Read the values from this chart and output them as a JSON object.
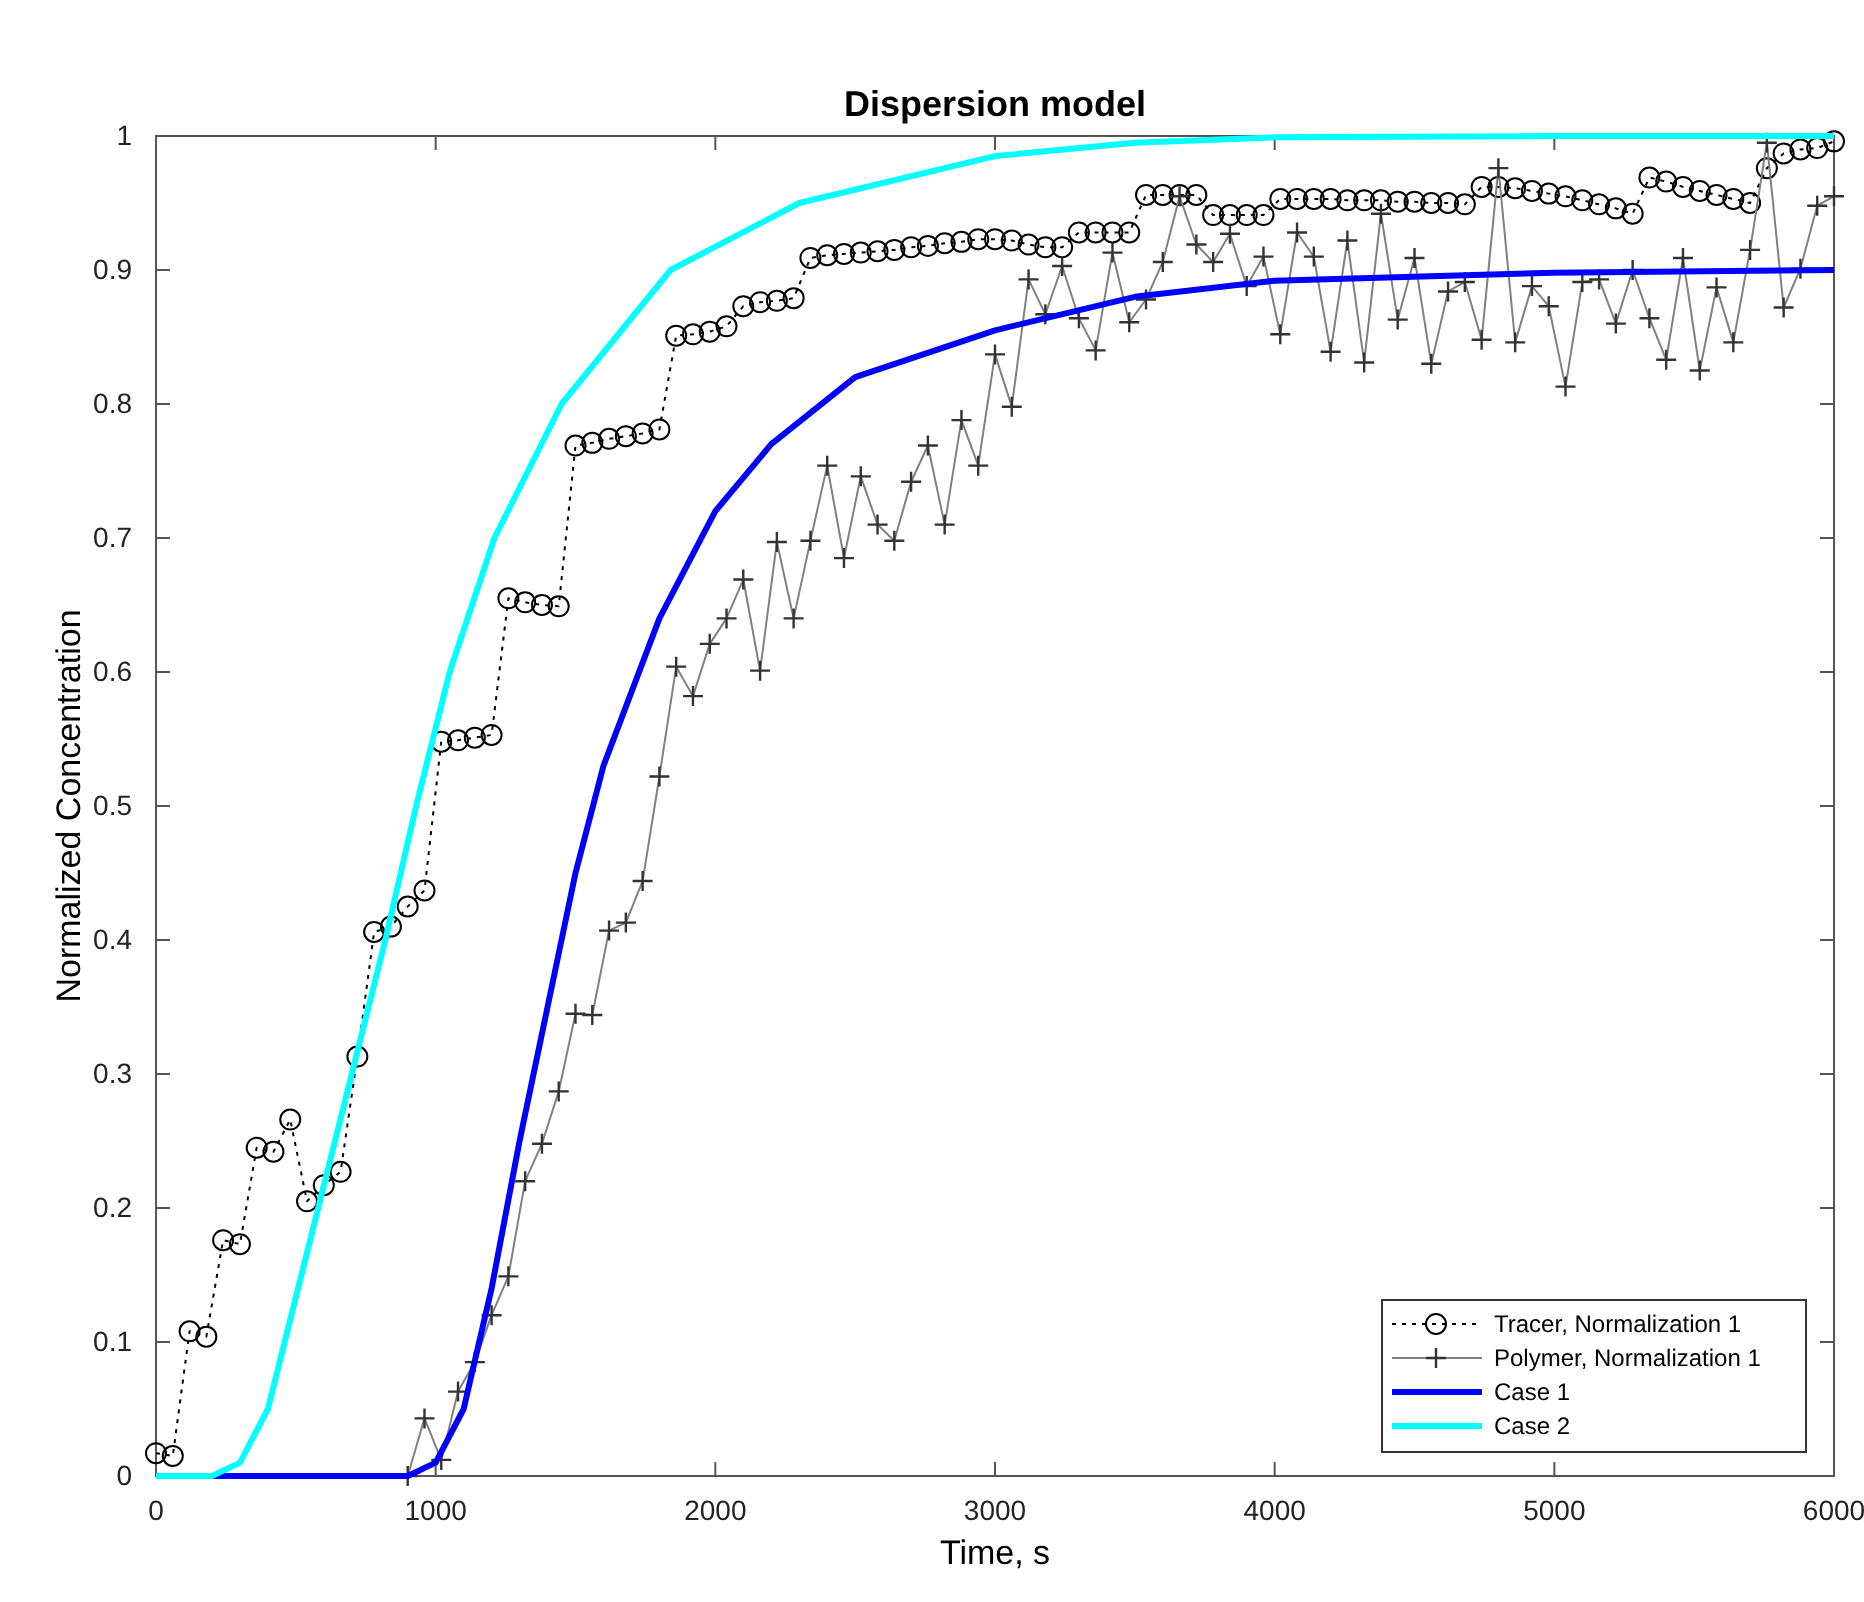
{
  "chart_data": {
    "type": "line",
    "title": "Dispersion model",
    "xlabel": "Time, s",
    "ylabel": "Normalized Concentration",
    "xlim": [
      0,
      6000
    ],
    "xticks": [
      0,
      1000,
      2000,
      3000,
      4000,
      5000,
      6000
    ],
    "ylim": [
      0,
      1
    ],
    "yticks": [
      0,
      0.1,
      0.2,
      0.3,
      0.4,
      0.5,
      0.6,
      0.7,
      0.8,
      0.9,
      1
    ],
    "grid": false,
    "legend": "bottom right",
    "series": [
      {
        "name": "Tracer, Normalization 1",
        "color": "#000000",
        "marker": "circle",
        "line_style": "dotted",
        "x": [
          0,
          60,
          120,
          180,
          240,
          300,
          360,
          420,
          480,
          540,
          600,
          660,
          720,
          780,
          840,
          900,
          960,
          1020,
          1080,
          1140,
          1200,
          1260,
          1320,
          1380,
          1440,
          1500,
          1560,
          1620,
          1680,
          1740,
          1800,
          1860,
          1920,
          1980,
          2040,
          2100,
          2160,
          2220,
          2280,
          2340,
          2400,
          2460,
          2520,
          2580,
          2640,
          2700,
          2760,
          2820,
          2880,
          2940,
          3000,
          3060,
          3120,
          3180,
          3240,
          3300,
          3360,
          3420,
          3480,
          3540,
          3600,
          3660,
          3720,
          3780,
          3840,
          3900,
          3960,
          4020,
          4080,
          4140,
          4200,
          4260,
          4320,
          4380,
          4440,
          4500,
          4560,
          4620,
          4680,
          4740,
          4800,
          4860,
          4920,
          4980,
          5040,
          5100,
          5160,
          5220,
          5280,
          5340,
          5400,
          5460,
          5520,
          5580,
          5640,
          5700,
          5760,
          5820,
          5880,
          5940,
          6000
        ],
        "values": [
          0.017,
          0.015,
          0.108,
          0.104,
          0.176,
          0.173,
          0.245,
          0.242,
          0.266,
          0.205,
          0.217,
          0.227,
          0.313,
          0.406,
          0.41,
          0.425,
          0.437,
          0.548,
          0.549,
          0.551,
          0.553,
          0.655,
          0.652,
          0.65,
          0.649,
          0.769,
          0.771,
          0.774,
          0.776,
          0.778,
          0.781,
          0.851,
          0.852,
          0.854,
          0.858,
          0.873,
          0.876,
          0.877,
          0.879,
          0.909,
          0.911,
          0.912,
          0.913,
          0.914,
          0.915,
          0.917,
          0.918,
          0.92,
          0.921,
          0.923,
          0.923,
          0.922,
          0.919,
          0.917,
          0.917,
          0.928,
          0.928,
          0.928,
          0.928,
          0.956,
          0.956,
          0.956,
          0.956,
          0.941,
          0.941,
          0.941,
          0.941,
          0.953,
          0.953,
          0.953,
          0.953,
          0.952,
          0.952,
          0.952,
          0.951,
          0.951,
          0.95,
          0.95,
          0.949,
          0.962,
          0.962,
          0.961,
          0.959,
          0.957,
          0.955,
          0.952,
          0.949,
          0.946,
          0.942,
          0.969,
          0.966,
          0.962,
          0.959,
          0.956,
          0.953,
          0.95,
          0.976,
          0.987,
          0.99,
          0.991,
          0.996
        ]
      },
      {
        "name": "Polymer, Normalization 1",
        "color": "#808080",
        "marker": "cross",
        "line_style": "solid",
        "x": [
          900,
          960,
          1020,
          1080,
          1140,
          1200,
          1260,
          1320,
          1380,
          1440,
          1500,
          1560,
          1620,
          1680,
          1740,
          1800,
          1860,
          1920,
          1980,
          2040,
          2100,
          2160,
          2220,
          2280,
          2340,
          2400,
          2460,
          2520,
          2580,
          2640,
          2700,
          2760,
          2820,
          2880,
          2940,
          3000,
          3060,
          3120,
          3180,
          3240,
          3300,
          3360,
          3420,
          3480,
          3540,
          3600,
          3660,
          3720,
          3780,
          3840,
          3900,
          3960,
          4020,
          4080,
          4140,
          4200,
          4260,
          4320,
          4380,
          4440,
          4500,
          4560,
          4620,
          4680,
          4740,
          4800,
          4860,
          4920,
          4980,
          5040,
          5100,
          5160,
          5220,
          5280,
          5340,
          5400,
          5460,
          5520,
          5580,
          5640,
          5700,
          5760,
          5820,
          5880,
          5940,
          6000
        ],
        "values": [
          0,
          0.043,
          0.012,
          0.063,
          0.085,
          0.12,
          0.149,
          0.22,
          0.248,
          0.287,
          0.345,
          0.344,
          0.407,
          0.413,
          0.444,
          0.522,
          0.604,
          0.582,
          0.621,
          0.64,
          0.669,
          0.601,
          0.697,
          0.64,
          0.698,
          0.754,
          0.685,
          0.746,
          0.71,
          0.698,
          0.742,
          0.769,
          0.71,
          0.788,
          0.754,
          0.837,
          0.798,
          0.893,
          0.867,
          0.903,
          0.864,
          0.84,
          0.913,
          0.861,
          0.878,
          0.906,
          0.955,
          0.919,
          0.906,
          0.927,
          0.888,
          0.91,
          0.852,
          0.928,
          0.91,
          0.839,
          0.922,
          0.831,
          0.942,
          0.863,
          0.909,
          0.83,
          0.884,
          0.891,
          0.848,
          0.976,
          0.846,
          0.888,
          0.873,
          0.813,
          0.891,
          0.893,
          0.86,
          0.9,
          0.864,
          0.833,
          0.909,
          0.825,
          0.887,
          0.846,
          0.915,
          0.995,
          0.872,
          0.901,
          0.948,
          0.955
        ]
      },
      {
        "name": "Case 1",
        "color": "#0000ff",
        "marker": "none",
        "line_style": "solid",
        "x": [
          0,
          900,
          1000,
          1100,
          1200,
          1300,
          1400,
          1500,
          1600,
          1800,
          2000,
          2200,
          2500,
          3000,
          3500,
          4000,
          5000,
          6000
        ],
        "values": [
          0,
          0,
          0.01,
          0.05,
          0.14,
          0.25,
          0.35,
          0.45,
          0.53,
          0.64,
          0.72,
          0.77,
          0.82,
          0.855,
          0.88,
          0.892,
          0.898,
          0.9
        ]
      },
      {
        "name": "Case 2",
        "color": "#00ffff",
        "marker": "none",
        "line_style": "solid",
        "x": [
          0,
          200,
          300,
          400,
          460,
          580,
          700,
          820,
          930,
          1050,
          1210,
          1450,
          1840,
          2300,
          3000,
          3500,
          4000,
          5000,
          6000
        ],
        "values": [
          0,
          0,
          0.01,
          0.05,
          0.1,
          0.2,
          0.3,
          0.4,
          0.5,
          0.6,
          0.7,
          0.8,
          0.9,
          0.95,
          0.985,
          0.995,
          0.999,
          1,
          1
        ]
      }
    ]
  }
}
